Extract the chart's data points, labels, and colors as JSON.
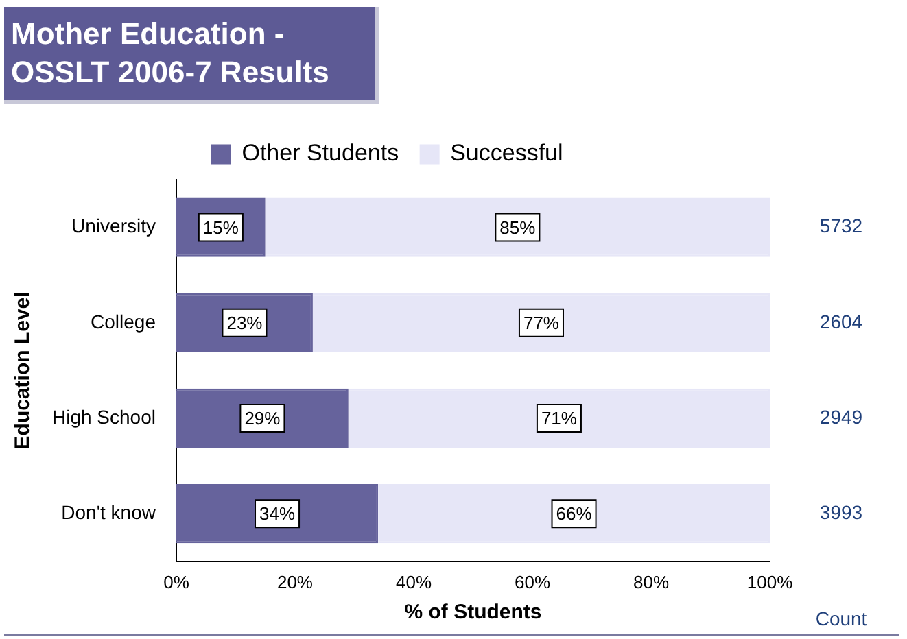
{
  "chart_data": {
    "type": "bar",
    "orientation": "horizontal",
    "stacked": true,
    "title": "Mother Education - OSSLT 2006-7 Results",
    "xlabel": "% of Students",
    "ylabel": "Education Level",
    "categories": [
      "University",
      "College",
      "High School",
      "Don't know"
    ],
    "series": [
      {
        "name": "Other Students",
        "color": "#66639c",
        "values": [
          15,
          23,
          29,
          34
        ],
        "value_labels": [
          "15%",
          "23%",
          "29%",
          "34%"
        ]
      },
      {
        "name": "Successful",
        "color": "#e6e6f7",
        "values": [
          85,
          77,
          71,
          66
        ],
        "value_labels": [
          "85%",
          "77%",
          "71%",
          "66%"
        ]
      }
    ],
    "xlim": [
      0,
      100
    ],
    "xticks": [
      {
        "value": 0,
        "label": "0%"
      },
      {
        "value": 20,
        "label": "20%"
      },
      {
        "value": 40,
        "label": "40%"
      },
      {
        "value": 60,
        "label": "60%"
      },
      {
        "value": 80,
        "label": "80%"
      },
      {
        "value": 100,
        "label": "100%"
      }
    ],
    "legend": "top",
    "grid": false,
    "annotations": [
      "5732",
      "2604",
      "2949",
      "3993",
      "Count"
    ]
  }
}
